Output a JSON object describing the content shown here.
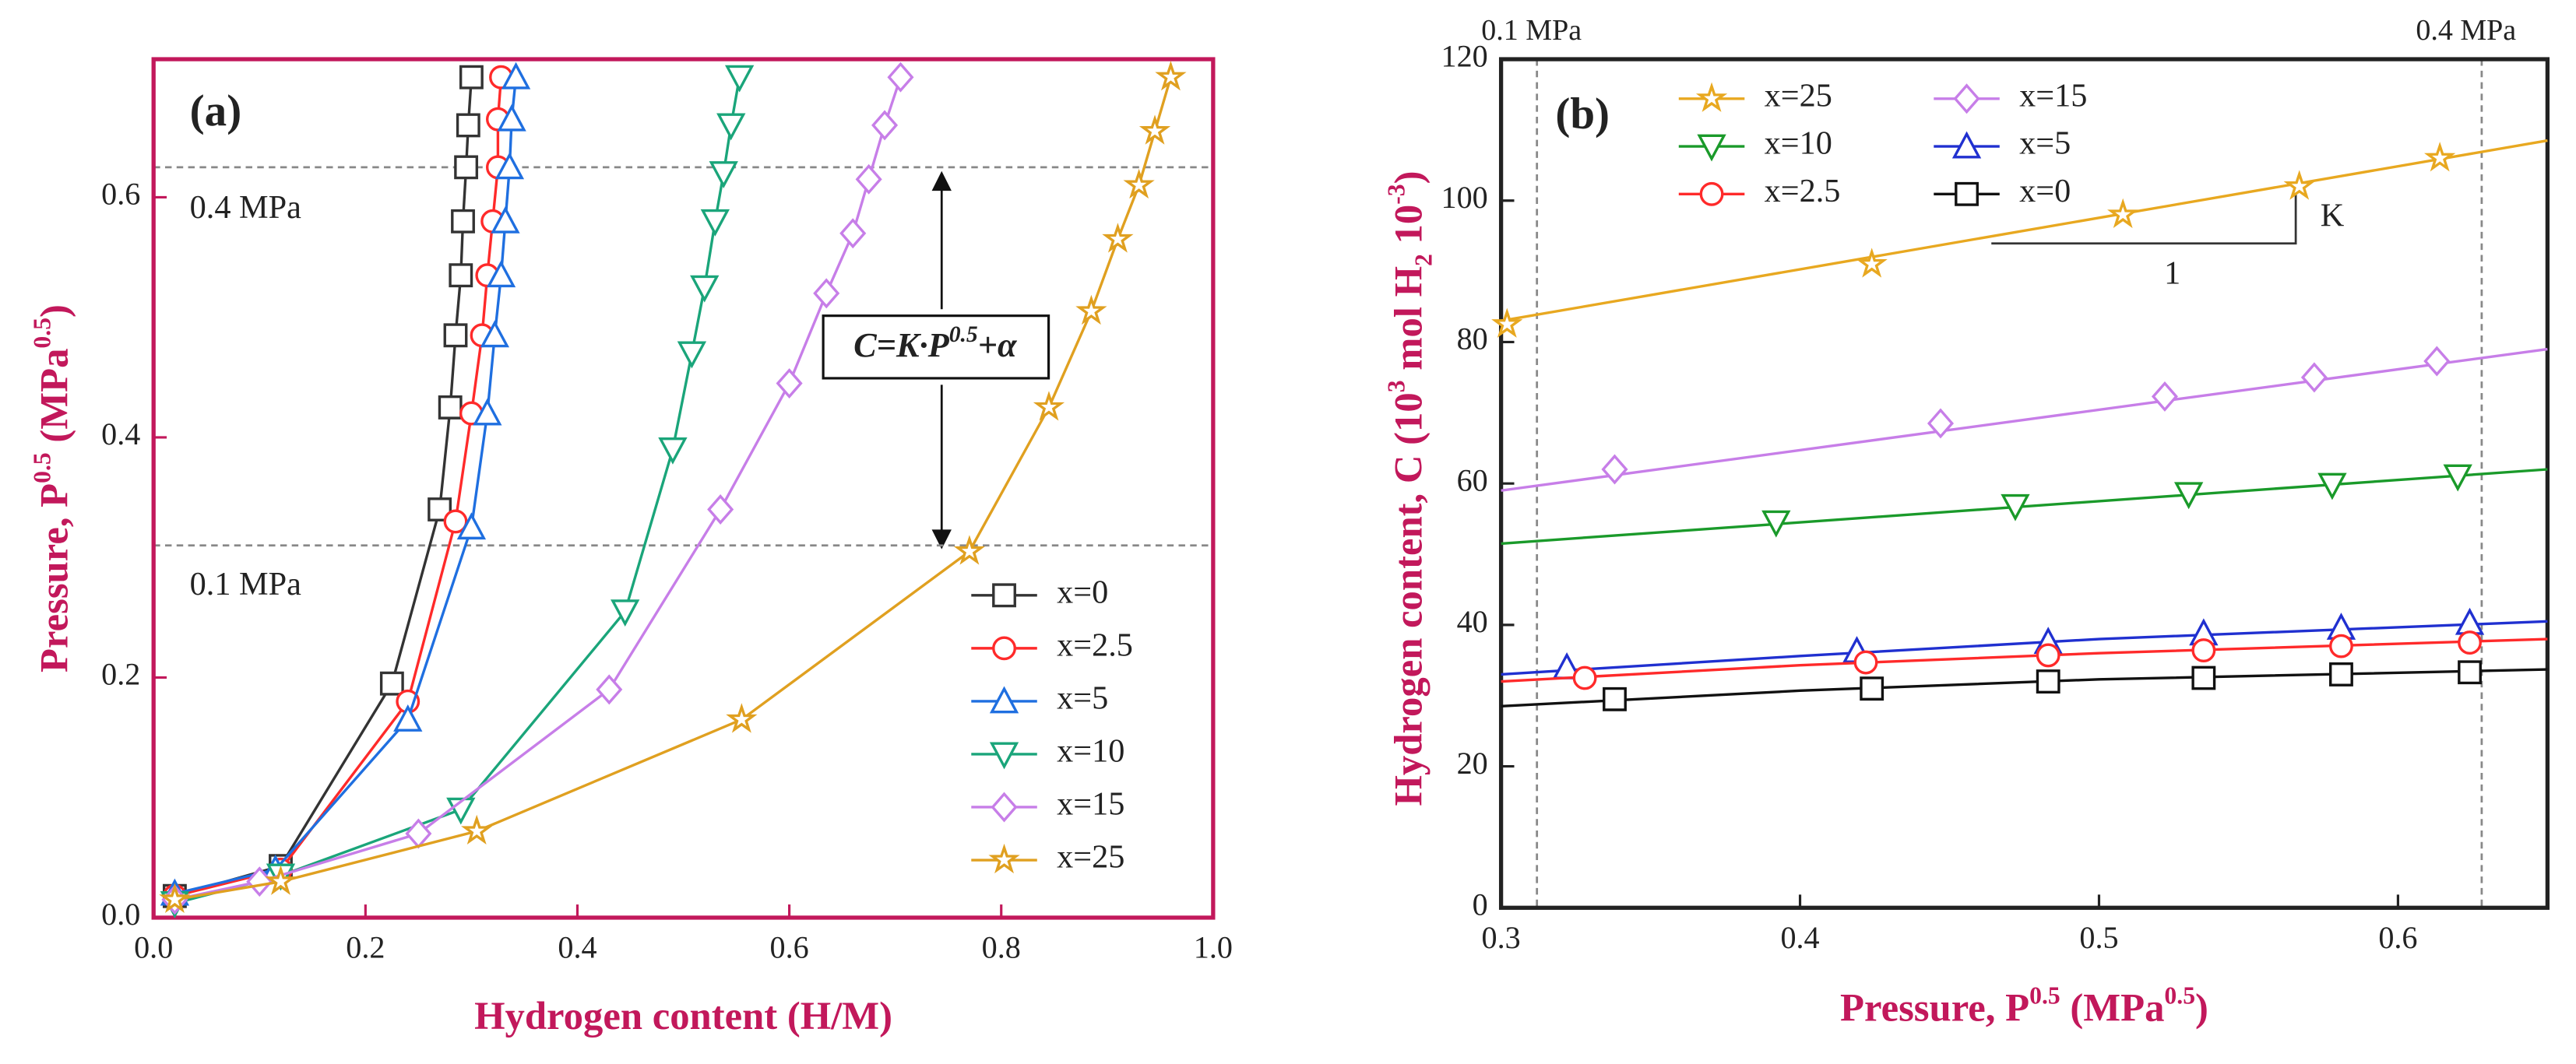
{
  "chart_data": [
    {
      "type": "line",
      "title": "(a)",
      "xlabel": [
        "Hydrogen content (H/M)"
      ],
      "ylabel": [
        "Pressure, P",
        "0.5",
        " (MPa",
        "0.5",
        ")"
      ],
      "annotations": [
        "0.4 MPa",
        "0.1 MPa"
      ],
      "formula": [
        "C=K·P",
        "0.5",
        "+α"
      ],
      "reference_lines": {
        "axis": "y",
        "values": [
          0.625,
          0.31
        ]
      },
      "xlim": [
        0,
        1.0
      ],
      "xticks": [
        {
          "value": 0,
          "label": "0.0"
        },
        0.2,
        0.4,
        0.6,
        0.8,
        {
          "value": 1.0,
          "label": "1.0"
        }
      ],
      "ylim": [
        0,
        0.715
      ],
      "yticks": [
        {
          "value": 0,
          "label": "0.0"
        },
        0.2,
        0.4,
        0.6
      ],
      "legend": "lower right",
      "series": [
        {
          "name": "x=0",
          "color": "#333333",
          "marker": "square",
          "x": [
            0.02,
            0.12,
            0.225,
            0.27,
            0.28,
            0.285,
            0.29,
            0.292,
            0.295,
            0.297,
            0.3
          ],
          "values": [
            0.018,
            0.043,
            0.195,
            0.34,
            0.425,
            0.485,
            0.535,
            0.58,
            0.625,
            0.66,
            0.7
          ]
        },
        {
          "name": "x=2.5",
          "color": "#ff2a2a",
          "marker": "circle",
          "x": [
            0.02,
            0.12,
            0.24,
            0.285,
            0.3,
            0.31,
            0.315,
            0.32,
            0.325,
            0.325,
            0.328
          ],
          "values": [
            0.018,
            0.04,
            0.18,
            0.33,
            0.42,
            0.485,
            0.535,
            0.58,
            0.625,
            0.665,
            0.7
          ]
        },
        {
          "name": "x=5",
          "color": "#1f6fe0",
          "marker": "triangle",
          "x": [
            0.02,
            0.115,
            0.24,
            0.3,
            0.315,
            0.322,
            0.328,
            0.332,
            0.336,
            0.338,
            0.342
          ],
          "values": [
            0.02,
            0.04,
            0.165,
            0.325,
            0.42,
            0.485,
            0.535,
            0.58,
            0.625,
            0.665,
            0.7
          ]
        },
        {
          "name": "x=10",
          "color": "#1aa57a",
          "marker": "triangle-down",
          "x": [
            0.02,
            0.12,
            0.29,
            0.445,
            0.49,
            0.508,
            0.52,
            0.53,
            0.538,
            0.545,
            0.553
          ],
          "values": [
            0.012,
            0.035,
            0.09,
            0.255,
            0.39,
            0.47,
            0.525,
            0.58,
            0.62,
            0.66,
            0.7
          ]
        },
        {
          "name": "x=15",
          "color": "#c77ee8",
          "marker": "diamond",
          "x": [
            0.02,
            0.1,
            0.25,
            0.43,
            0.535,
            0.6,
            0.635,
            0.66,
            0.675,
            0.69,
            0.705
          ],
          "values": [
            0.015,
            0.03,
            0.07,
            0.19,
            0.34,
            0.445,
            0.52,
            0.57,
            0.615,
            0.66,
            0.7
          ]
        },
        {
          "name": "x=25",
          "color": "#e0a020",
          "marker": "star",
          "x": [
            0.02,
            0.12,
            0.305,
            0.555,
            0.77,
            0.845,
            0.885,
            0.91,
            0.93,
            0.945,
            0.96
          ],
          "values": [
            0.015,
            0.03,
            0.072,
            0.165,
            0.305,
            0.425,
            0.505,
            0.565,
            0.61,
            0.655,
            0.7
          ]
        }
      ]
    },
    {
      "type": "scatter",
      "title": "(b)",
      "xlabel": [
        "Pressure, P",
        "0.5",
        " (MPa",
        "0.5",
        ")"
      ],
      "ylabel": [
        "Hydrogen content, C (10",
        "3",
        " mol H",
        "2",
        " 10",
        "-3",
        ")"
      ],
      "annotations": [
        "0.1 MPa",
        "0.4 MPa",
        "K",
        "1"
      ],
      "reference_lines": {
        "axis": "x",
        "values": [
          0.312,
          0.628
        ]
      },
      "xlim": [
        0.3,
        0.65
      ],
      "xticks": [
        0.3,
        0.4,
        0.5,
        0.6
      ],
      "ylim": [
        0,
        120
      ],
      "yticks": [
        0,
        20,
        40,
        60,
        80,
        100,
        120
      ],
      "legend": "upper left",
      "series": [
        {
          "name": "x=25",
          "color": "#e8a820",
          "marker": "star",
          "x": [
            0.302,
            0.424,
            0.508,
            0.567,
            0.614
          ],
          "values": [
            82.5,
            91,
            98,
            102,
            106
          ],
          "fit": {
            "x": [
              0.3,
              0.65
            ],
            "values": [
              83,
              108.5
            ]
          }
        },
        {
          "name": "x=15",
          "color": "#c77ee8",
          "marker": "diamond",
          "x": [
            0.338,
            0.447,
            0.522,
            0.572,
            0.613
          ],
          "values": [
            62,
            68.5,
            72.3,
            75,
            77.3
          ],
          "fit": {
            "x": [
              0.3,
              0.65
            ],
            "values": [
              59,
              79
            ]
          }
        },
        {
          "name": "x=10",
          "color": "#1a9a2a",
          "marker": "triangle-down",
          "x": [
            0.392,
            0.472,
            0.53,
            0.578,
            0.62
          ],
          "values": [
            54.5,
            56.8,
            58.5,
            59.8,
            61
          ],
          "fit": {
            "x": [
              0.3,
              0.65
            ],
            "values": [
              51.5,
              62
            ]
          }
        },
        {
          "name": "x=5",
          "color": "#2030d0",
          "marker": "triangle",
          "x": [
            0.322,
            0.419,
            0.483,
            0.535,
            0.581,
            0.624
          ],
          "values": [
            34,
            36.3,
            37.6,
            38.8,
            39.6,
            40.3
          ],
          "fit": {
            "x": [
              0.3,
              0.4,
              0.5,
              0.65
            ],
            "values": [
              33,
              35.6,
              38,
              40.5
            ]
          }
        },
        {
          "name": "x=2.5",
          "color": "#ff2a2a",
          "marker": "circle",
          "x": [
            0.328,
            0.422,
            0.483,
            0.535,
            0.581,
            0.624
          ],
          "values": [
            32.5,
            34.7,
            35.7,
            36.4,
            37,
            37.5
          ],
          "fit": {
            "x": [
              0.3,
              0.4,
              0.5,
              0.65
            ],
            "values": [
              32,
              34.3,
              36,
              38
            ]
          }
        },
        {
          "name": "x=0",
          "color": "#111111",
          "marker": "square",
          "x": [
            0.338,
            0.424,
            0.483,
            0.535,
            0.581,
            0.624
          ],
          "values": [
            29.5,
            31,
            32,
            32.5,
            33,
            33.3
          ],
          "fit": {
            "x": [
              0.3,
              0.4,
              0.5,
              0.65
            ],
            "values": [
              28.5,
              30.7,
              32.3,
              33.7
            ]
          }
        }
      ]
    }
  ]
}
